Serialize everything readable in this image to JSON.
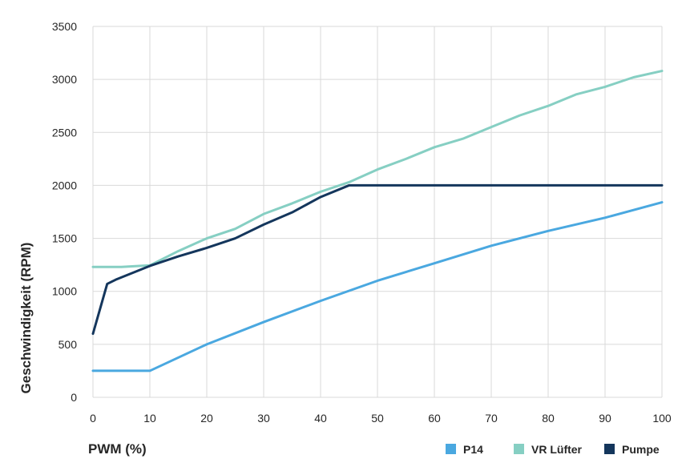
{
  "chart_data": {
    "type": "line",
    "xlabel": "PWM (%)",
    "ylabel": "Geschwindigkeit (RPM)",
    "xlim": [
      0,
      100
    ],
    "ylim": [
      0,
      3500
    ],
    "xticks": [
      0,
      10,
      20,
      30,
      40,
      50,
      60,
      70,
      80,
      90,
      100
    ],
    "yticks": [
      0,
      500,
      1000,
      1500,
      2000,
      2500,
      3000,
      3500
    ],
    "grid": true,
    "legend_position": "bottom-right",
    "series": [
      {
        "name": "P14",
        "color": "#4aa8e0",
        "points": [
          [
            0,
            250
          ],
          [
            10,
            250
          ],
          [
            20,
            500
          ],
          [
            30,
            710
          ],
          [
            40,
            910
          ],
          [
            50,
            1100
          ],
          [
            60,
            1265
          ],
          [
            70,
            1430
          ],
          [
            80,
            1570
          ],
          [
            90,
            1695
          ],
          [
            100,
            1840
          ]
        ]
      },
      {
        "name": "VR Lüfter",
        "color": "#86cfc3",
        "points": [
          [
            0,
            1230
          ],
          [
            5,
            1230
          ],
          [
            10,
            1245
          ],
          [
            15,
            1380
          ],
          [
            20,
            1500
          ],
          [
            25,
            1590
          ],
          [
            30,
            1730
          ],
          [
            35,
            1830
          ],
          [
            40,
            1940
          ],
          [
            45,
            2030
          ],
          [
            50,
            2150
          ],
          [
            55,
            2250
          ],
          [
            60,
            2360
          ],
          [
            65,
            2440
          ],
          [
            70,
            2550
          ],
          [
            75,
            2660
          ],
          [
            80,
            2750
          ],
          [
            85,
            2860
          ],
          [
            90,
            2930
          ],
          [
            95,
            3020
          ],
          [
            100,
            3080
          ]
        ]
      },
      {
        "name": "Pumpe",
        "color": "#14365c",
        "points": [
          [
            0,
            600
          ],
          [
            2.5,
            1070
          ],
          [
            4,
            1110
          ],
          [
            10,
            1240
          ],
          [
            15,
            1330
          ],
          [
            20,
            1410
          ],
          [
            25,
            1500
          ],
          [
            30,
            1630
          ],
          [
            35,
            1745
          ],
          [
            40,
            1890
          ],
          [
            45,
            2000
          ],
          [
            50,
            2000
          ],
          [
            60,
            2000
          ],
          [
            70,
            2000
          ],
          [
            80,
            2000
          ],
          [
            90,
            2000
          ],
          [
            100,
            2000
          ]
        ]
      }
    ]
  }
}
